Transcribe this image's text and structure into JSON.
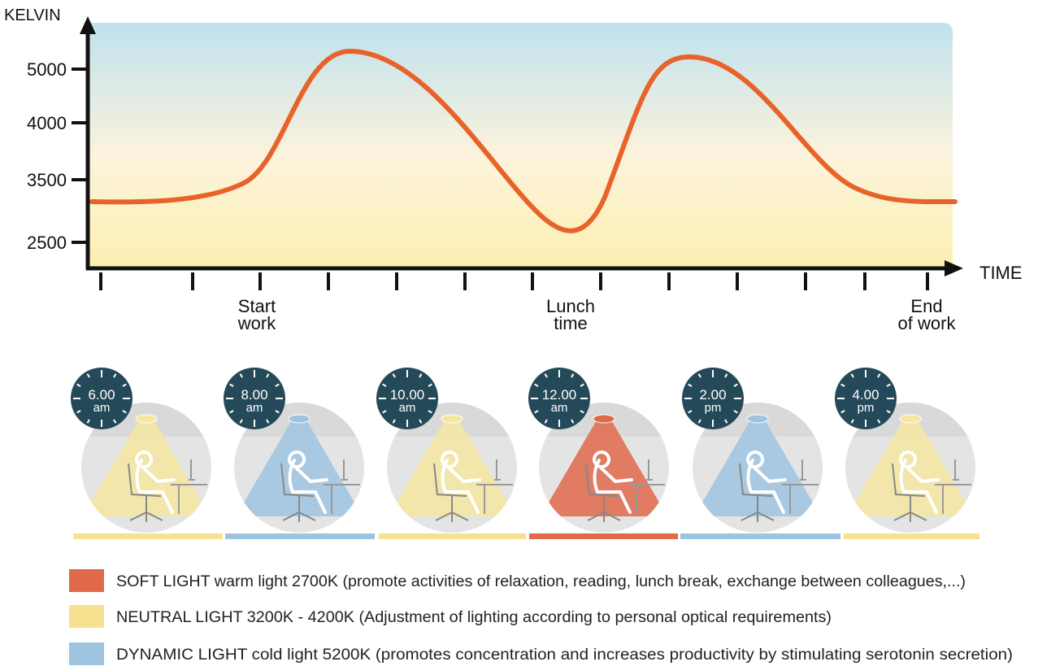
{
  "axis": {
    "y_title": "KELVIN",
    "x_title": "TIME",
    "y_labels": [
      "5000",
      "4000",
      "3500",
      "2500"
    ],
    "x_labels": [
      [
        "Start",
        "work"
      ],
      [
        "Lunch",
        "time"
      ],
      [
        "End",
        "of work"
      ]
    ]
  },
  "scenes": [
    {
      "time": "6.00",
      "period": "am",
      "color": "#f5e6a0"
    },
    {
      "time": "8.00",
      "period": "am",
      "color": "#9ec4e0"
    },
    {
      "time": "10.00",
      "period": "am",
      "color": "#f5e6a0"
    },
    {
      "time": "12.00",
      "period": "am",
      "color": "#e0694a"
    },
    {
      "time": "2.00",
      "period": "pm",
      "color": "#9ec4e0"
    },
    {
      "time": "4.00",
      "period": "pm",
      "color": "#f5e6a0"
    }
  ],
  "legend": [
    {
      "label": "SOFT LIGHT warm light 2700K (promote activities of relaxation, reading, lunch break, exchange between colleagues,...)",
      "color": "#e0694a"
    },
    {
      "label": "NEUTRAL LIGHT 3200K - 4200K (Adjustment of lighting according to personal optical requirements)",
      "color": "#f7e08f"
    },
    {
      "label": "DYNAMIC LIGHT cold light 5200K (promotes concentration and increases productivity by stimulating serotonin secretion)",
      "color": "#9ec4e0"
    }
  ]
}
